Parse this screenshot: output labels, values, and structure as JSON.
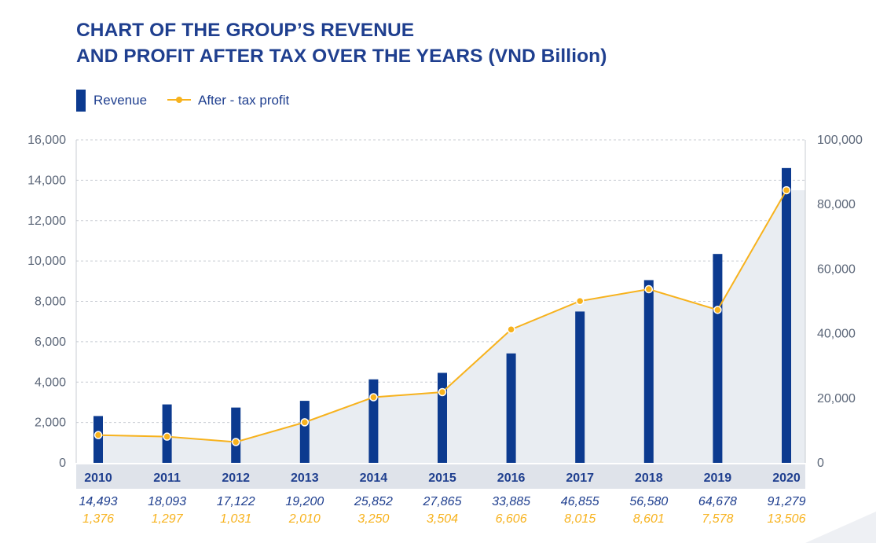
{
  "title": {
    "line1": "CHART OF THE GROUP’S REVENUE",
    "line2": "AND PROFIT AFTER TAX OVER THE YEARS (VND Billion)"
  },
  "legend": {
    "revenue": "Revenue",
    "profit": "After - tax profit"
  },
  "colors": {
    "title": "#1f3f8f",
    "bar": "#0c3a8f",
    "line": "#f7b21d",
    "area": "#e9edf2",
    "year_band": "#dfe3ea",
    "axis_text": "#5b6678",
    "revenue_label": "#1f3f8f",
    "profit_label": "#f7b21d"
  },
  "chart_data": {
    "type": "bar",
    "categories": [
      "2010",
      "2011",
      "2012",
      "2013",
      "2014",
      "2015",
      "2016",
      "2017",
      "2018",
      "2019",
      "2020"
    ],
    "series": [
      {
        "name": "Revenue",
        "type": "bar",
        "axis": "right",
        "values": [
          14493,
          18093,
          17122,
          19200,
          25852,
          27865,
          33885,
          46855,
          56580,
          64678,
          91279
        ],
        "labels": [
          "14,493",
          "18,093",
          "17,122",
          "19,200",
          "25,852",
          "27,865",
          "33,885",
          "46,855",
          "56,580",
          "64,678",
          "91,279"
        ]
      },
      {
        "name": "After - tax profit",
        "type": "line",
        "axis": "left",
        "values": [
          1376,
          1297,
          1031,
          2010,
          3250,
          3504,
          6606,
          8015,
          8601,
          7578,
          13506
        ],
        "labels": [
          "1,376",
          "1,297",
          "1,031",
          "2,010",
          "3,250",
          "3,504",
          "6,606",
          "8,015",
          "8,601",
          "7,578",
          "13,506"
        ]
      }
    ],
    "left_axis": {
      "range": [
        0,
        16000
      ],
      "ticks": [
        "0",
        "2,000",
        "4,000",
        "6,000",
        "8,000",
        "10,000",
        "12,000",
        "14,000",
        "16,000"
      ]
    },
    "right_axis": {
      "range": [
        0,
        100000
      ],
      "ticks": [
        "0",
        "20,000",
        "40,000",
        "60,000",
        "80,000",
        "100,000"
      ]
    },
    "grid": "horizontal dashed",
    "legend_position": "top-left"
  }
}
